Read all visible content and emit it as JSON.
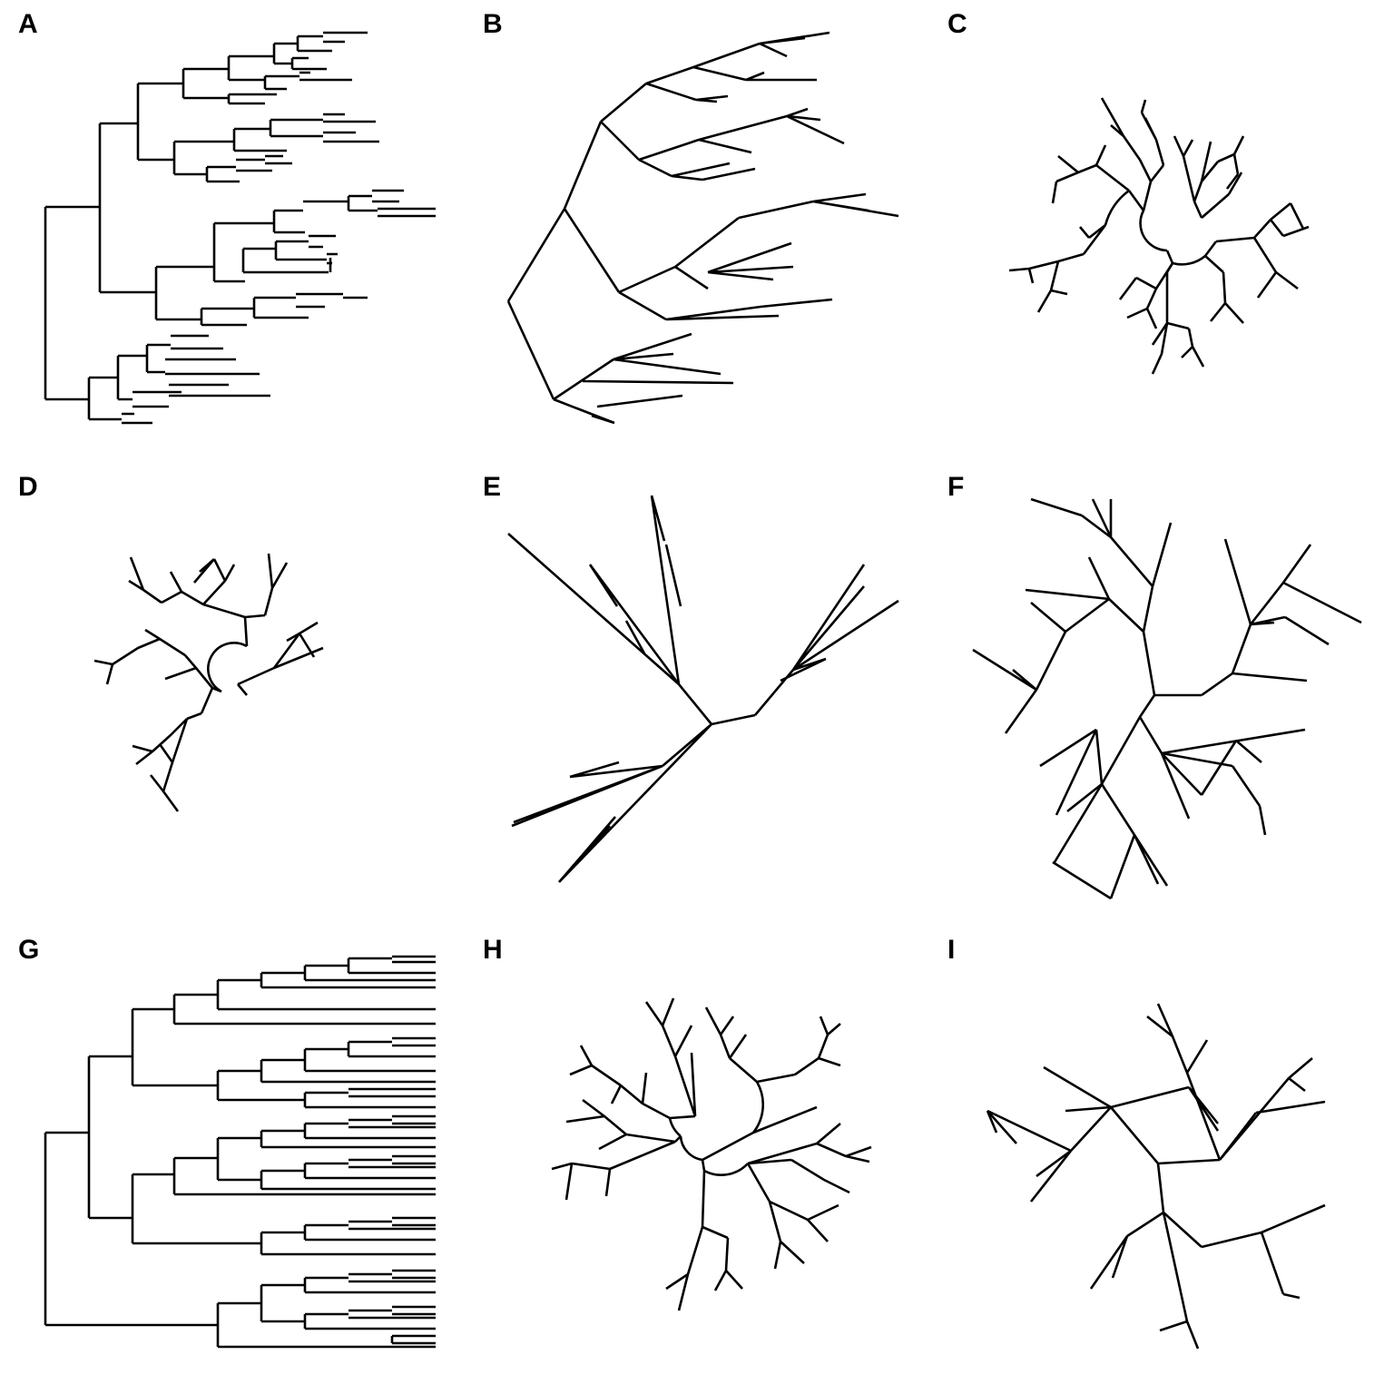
{
  "figure": {
    "panels": [
      {
        "letter": "A",
        "layout": "rectangular phylogram, slanted tips"
      },
      {
        "letter": "B",
        "layout": "slanted phylogram"
      },
      {
        "letter": "C",
        "layout": "circular phylogram, small"
      },
      {
        "letter": "D",
        "layout": "fan phylogram, small"
      },
      {
        "letter": "E",
        "layout": "unrooted phylogram"
      },
      {
        "letter": "F",
        "layout": "unrooted equal-angle"
      },
      {
        "letter": "G",
        "layout": "rectangular cladogram, ultrametric"
      },
      {
        "letter": "H",
        "layout": "circular cladogram"
      },
      {
        "letter": "I",
        "layout": "unrooted cladogram with wide branches"
      }
    ]
  }
}
